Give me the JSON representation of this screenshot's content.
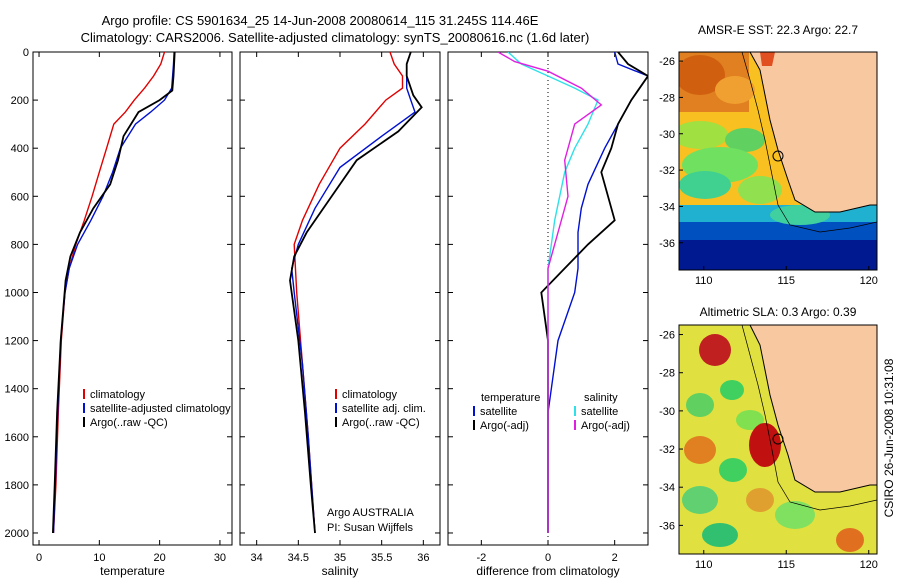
{
  "title_line1": "Argo profile: CS 5901634_25 14-Jun-2008 20080614_115 31.245S 114.46E",
  "title_line2": "Climatology: CARS2006. Satellite-adjusted climatology: synTS_20080616.nc (1.6d later)",
  "footer": "CSIRO 26-Jun-2008 10:31:08",
  "colors": {
    "climatology": "#e00000",
    "satellite": "#0010d0",
    "argo": "#000000",
    "salinity_sat": "#30e0e8",
    "salinity_argo": "#e020e0",
    "land": "#f8c8a0"
  },
  "chart_data": [
    {
      "type": "line",
      "xlabel": "temperature",
      "xlim": [
        -1,
        32
      ],
      "ylim": [
        0,
        2050
      ],
      "xticks": [
        0,
        10,
        20,
        30
      ],
      "yticks": [
        0,
        200,
        400,
        600,
        800,
        1000,
        1200,
        1400,
        1600,
        1800,
        2000
      ],
      "y_reversed": true,
      "legend": [
        "climatology",
        "satellite-adjusted climatology",
        "Argo(..raw -QC)"
      ],
      "series": [
        {
          "name": "climatology",
          "color": "#e00000",
          "x": [
            20.8,
            20.2,
            19.0,
            17.5,
            15.8,
            14.3,
            12.4,
            11.2,
            10.0,
            8.8,
            7.5,
            6.1,
            5.0,
            4.3,
            3.7,
            3.2,
            2.8,
            2.4
          ],
          "y": [
            0,
            50,
            100,
            150,
            200,
            250,
            300,
            400,
            500,
            600,
            700,
            800,
            900,
            1000,
            1200,
            1500,
            1800,
            2000
          ]
        },
        {
          "name": "satellite-adjusted climatology",
          "color": "#0010d0",
          "x": [
            22.4,
            22.3,
            22.0,
            20.8,
            18.5,
            16.0,
            13.5,
            12.2,
            10.6,
            8.6,
            6.4,
            5.0,
            4.3,
            3.6,
            3.1,
            2.7,
            2.4
          ],
          "y": [
            0,
            50,
            150,
            200,
            250,
            300,
            400,
            500,
            600,
            700,
            800,
            900,
            1000,
            1200,
            1500,
            1800,
            2000
          ]
        },
        {
          "name": "Argo(..raw -QC)",
          "color": "#000000",
          "x": [
            22.5,
            22.4,
            22.3,
            22.1,
            20.0,
            16.5,
            14.0,
            13.1,
            11.8,
            9.0,
            6.8,
            5.2,
            4.4,
            3.6,
            3.0,
            2.6,
            2.3
          ],
          "y": [
            0,
            50,
            100,
            160,
            200,
            250,
            350,
            450,
            550,
            650,
            750,
            850,
            950,
            1200,
            1500,
            1800,
            2000
          ]
        }
      ]
    },
    {
      "type": "line",
      "xlabel": "salinity",
      "xlim": [
        33.8,
        36.2
      ],
      "ylim": [
        0,
        2050
      ],
      "xticks": [
        34,
        34.5,
        35,
        35.5,
        36
      ],
      "yticks": [
        0,
        200,
        400,
        600,
        800,
        1000,
        1200,
        1400,
        1600,
        1800,
        2000
      ],
      "y_reversed": true,
      "legend": [
        "climatology",
        "satellite adj. clim.",
        "Argo(..raw -QC)"
      ],
      "annotation_line1": "Argo AUSTRALIA",
      "annotation_line2": "PI: Susan Wijffels",
      "series": [
        {
          "name": "climatology",
          "color": "#e00000",
          "x": [
            35.6,
            35.65,
            35.75,
            35.75,
            35.55,
            35.3,
            35.0,
            34.75,
            34.55,
            34.45,
            34.48,
            34.55,
            34.62,
            34.68,
            34.7
          ],
          "y": [
            0,
            50,
            100,
            150,
            200,
            300,
            400,
            550,
            700,
            800,
            1000,
            1300,
            1600,
            1900,
            2000
          ]
        },
        {
          "name": "satellite adj. clim.",
          "color": "#0010d0",
          "x": [
            35.85,
            35.8,
            35.8,
            35.85,
            35.9,
            35.5,
            35.0,
            34.7,
            34.5,
            34.42,
            34.45,
            34.55,
            34.62,
            34.68,
            34.7
          ],
          "y": [
            0,
            50,
            150,
            200,
            250,
            350,
            480,
            650,
            800,
            900,
            1000,
            1300,
            1600,
            1900,
            2000
          ]
        },
        {
          "name": "Argo(..raw -QC)",
          "color": "#000000",
          "x": [
            35.85,
            35.8,
            35.8,
            35.88,
            35.98,
            35.7,
            35.2,
            34.9,
            34.6,
            34.45,
            34.4,
            34.5,
            34.58,
            34.65,
            34.7
          ],
          "y": [
            0,
            50,
            100,
            180,
            230,
            330,
            450,
            600,
            750,
            850,
            950,
            1200,
            1500,
            1800,
            2000
          ]
        }
      ]
    },
    {
      "type": "line",
      "xlabel": "difference from climatology",
      "xlim": [
        -3,
        3
      ],
      "ylim": [
        0,
        2050
      ],
      "xticks": [
        -2,
        0,
        2
      ],
      "yticks": [
        0,
        200,
        400,
        600,
        800,
        1000,
        1200,
        1400,
        1600,
        1800,
        2000
      ],
      "y_reversed": true,
      "legend_heading_left": "temperature",
      "legend_heading_right": "salinity",
      "legend_left": [
        "satellite",
        "Argo(-adj)"
      ],
      "legend_right": [
        "satellite",
        "Argo(-adj)"
      ],
      "series": [
        {
          "name": "temperature satellite",
          "color": "#0010d0",
          "x": [
            2.0,
            2.1,
            3.0,
            2.5,
            2.1,
            1.7,
            1.2,
            1.0,
            0.9,
            0.9,
            0.8,
            0.3,
            0.0,
            0.0,
            0.0
          ],
          "y": [
            0,
            50,
            100,
            200,
            300,
            400,
            550,
            650,
            750,
            900,
            1000,
            1200,
            1500,
            1800,
            2000
          ]
        },
        {
          "name": "temperature Argo(-adj)",
          "color": "#000000",
          "x": [
            2.1,
            2.4,
            3.0,
            2.5,
            2.1,
            1.9,
            1.6,
            2.0,
            1.2,
            0.5,
            -0.2,
            0.0,
            0.0,
            0.0,
            0.0
          ],
          "y": [
            0,
            50,
            100,
            200,
            300,
            400,
            500,
            700,
            800,
            900,
            1000,
            1200,
            1500,
            1800,
            2000
          ]
        },
        {
          "name": "salinity satellite",
          "color": "#30e0e8",
          "x": [
            -1.2,
            -0.8,
            0.0,
            0.8,
            1.5,
            1.2,
            0.8,
            0.5,
            0.2,
            0.0,
            0.0,
            0.0,
            0.0,
            0.0
          ],
          "y": [
            0,
            50,
            100,
            150,
            200,
            300,
            400,
            500,
            700,
            900,
            1200,
            1500,
            1800,
            2000
          ]
        },
        {
          "name": "salinity Argo(-adj)",
          "color": "#e020e0",
          "x": [
            -1.5,
            -1.0,
            0.0,
            1.0,
            1.6,
            0.8,
            0.5,
            0.6,
            0.3,
            0.0,
            0.0,
            0.0,
            0.0,
            0.0
          ],
          "y": [
            0,
            40,
            80,
            150,
            220,
            300,
            450,
            600,
            750,
            900,
            1200,
            1500,
            1800,
            2000
          ]
        }
      ]
    },
    {
      "type": "heatmap",
      "title": "AMSR-E SST: 22.3 Argo: 22.7",
      "xlim": [
        108.5,
        120.5
      ],
      "ylim": [
        -37.5,
        -25.5
      ],
      "xticks": [
        110,
        115,
        120
      ],
      "yticks": [
        -26,
        -28,
        -30,
        -32,
        -34,
        -36
      ],
      "marker": {
        "lon": 114.46,
        "lat": -31.245
      }
    },
    {
      "type": "heatmap",
      "title": "Altimetric SLA: 0.3 Argo: 0.39",
      "xlim": [
        108.5,
        120.5
      ],
      "ylim": [
        -37.5,
        -25.5
      ],
      "xticks": [
        110,
        115,
        120
      ],
      "yticks": [
        -26,
        -28,
        -30,
        -32,
        -34,
        -36
      ],
      "marker": {
        "lon": 114.46,
        "lat": -31.245
      }
    }
  ]
}
